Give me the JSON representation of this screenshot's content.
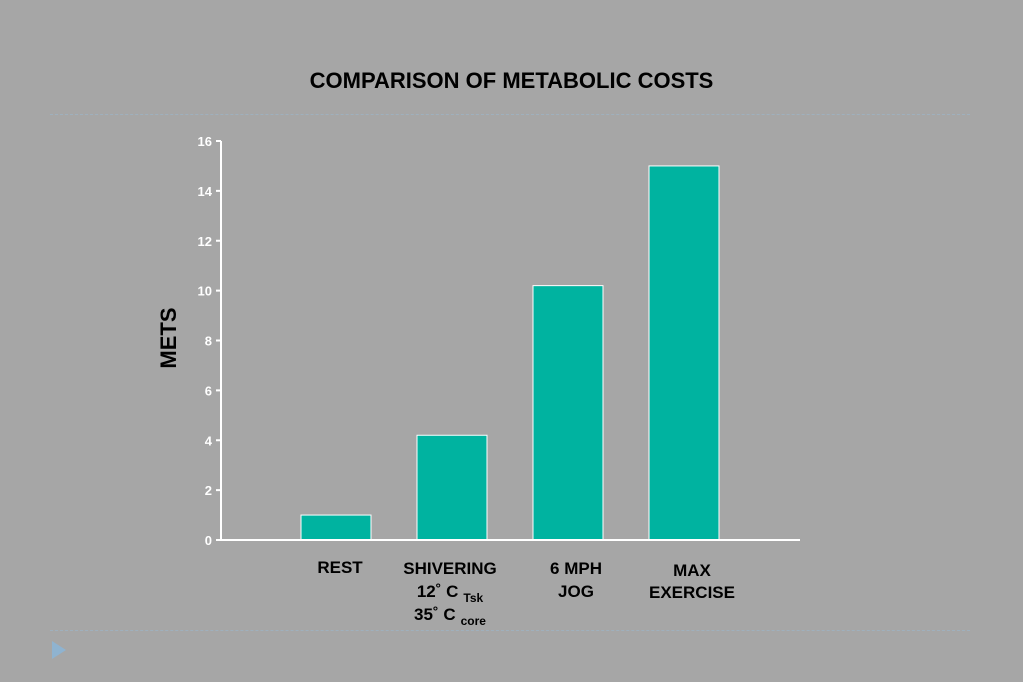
{
  "slide": {
    "background": "#a6a6a6",
    "nav_icon": "play-triangle-icon"
  },
  "chart_data": {
    "type": "bar",
    "title": "COMPARISON OF METABOLIC COSTS",
    "ylabel": "METS",
    "xlabel": "",
    "ylim": [
      0,
      16
    ],
    "yticks": [
      0,
      2,
      4,
      6,
      8,
      10,
      12,
      14,
      16
    ],
    "grid": false,
    "legend": "none",
    "bar_color": "#00b3a0",
    "axis_color": "#ffffff",
    "categories": [
      {
        "lines": [
          {
            "text": "REST"
          }
        ]
      },
      {
        "lines": [
          {
            "text": "SHIVERING"
          },
          {
            "text": "12˚  C",
            "sub": "Tsk"
          },
          {
            "text": "35˚  C",
            "sub": "core"
          }
        ]
      },
      {
        "lines": [
          {
            "text": "6 MPH"
          },
          {
            "text": "JOG"
          }
        ]
      },
      {
        "lines": [
          {
            "text": "MAX"
          },
          {
            "text": "EXERCISE"
          }
        ]
      }
    ],
    "values": [
      1,
      4.2,
      10.2,
      15
    ]
  }
}
